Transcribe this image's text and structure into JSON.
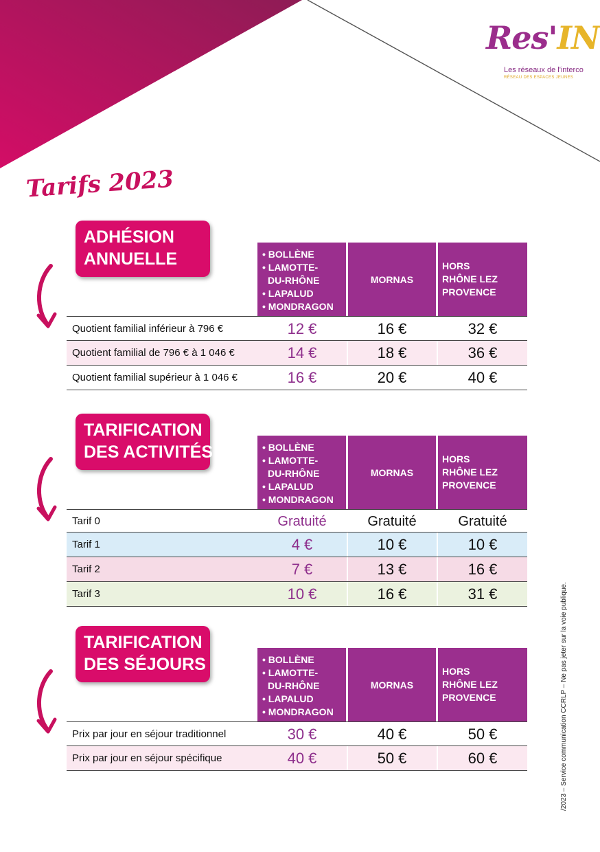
{
  "logo": {
    "main": "Res'",
    "accent": "IN",
    "sub": "Les réseaux de l'interco",
    "sub2": "RÉSEAU DES ESPACES JEUNES"
  },
  "page_title": "Tarifs 2023",
  "columns": {
    "col1": [
      "• BOLLÈNE",
      "• LAMOTTE-",
      "DU-RHÔNE",
      "• LAPALUD",
      "• MONDRAGON"
    ],
    "col2": "MORNAS",
    "col3": [
      "HORS",
      "RHÔNE LEZ",
      "PROVENCE"
    ]
  },
  "sections": [
    {
      "title": [
        "ADHÉSION",
        "ANNUELLE"
      ],
      "rows": [
        {
          "label": "Quotient familial inférieur à 796 €",
          "v1": "12 €",
          "v2": "16 €",
          "v3": "32 €",
          "style": "plain"
        },
        {
          "label": "Quotient familial de 796 € à 1 046 €",
          "v1": "14 €",
          "v2": "18 €",
          "v3": "36 €",
          "style": "pink"
        },
        {
          "label": "Quotient familial supérieur à 1 046 €",
          "v1": "16 €",
          "v2": "20 €",
          "v3": "40 €",
          "style": "plain"
        }
      ]
    },
    {
      "title": [
        "TARIFICATION",
        "DES ACTIVITÉS"
      ],
      "rows": [
        {
          "label": "Tarif 0",
          "v1": "Gratuité",
          "v2": "Gratuité",
          "v3": "Gratuité",
          "style": "plain"
        },
        {
          "label": "Tarif 1",
          "v1": "4 €",
          "v2": "10 €",
          "v3": "10 €",
          "style": "blue"
        },
        {
          "label": "Tarif 2",
          "v1": "7 €",
          "v2": "13 €",
          "v3": "16 €",
          "style": "pink2"
        },
        {
          "label": "Tarif 3",
          "v1": "10 €",
          "v2": "16 €",
          "v3": "31 €",
          "style": "green"
        }
      ]
    },
    {
      "title": [
        "TARIFICATION",
        "DES SÉJOURS"
      ],
      "rows": [
        {
          "label": "Prix par jour en séjour traditionnel",
          "v1": "30 €",
          "v2": "40 €",
          "v3": "50 €",
          "style": "plain"
        },
        {
          "label": "Prix par jour en séjour spécifique",
          "v1": "40 €",
          "v2": "50 €",
          "v3": "60 €",
          "style": "pink"
        }
      ]
    }
  ],
  "side_note": "/2023 – Service communication CCRLP – Ne pas jeter sur la voie publique."
}
